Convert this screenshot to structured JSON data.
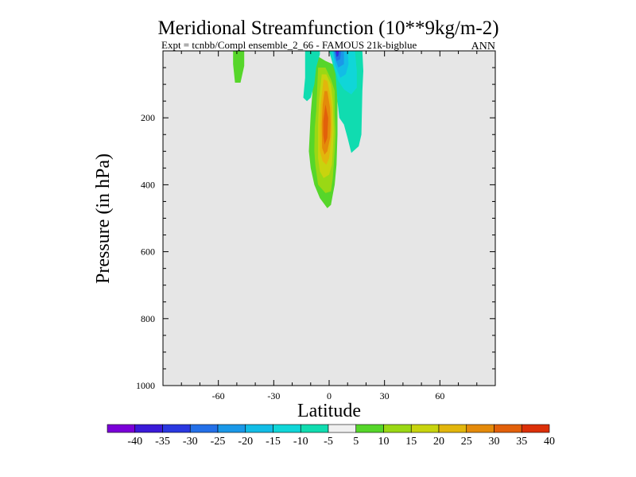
{
  "chart_data": {
    "type": "heatmap",
    "title": "Meridional Streamfunction (10**9kg/m-2)",
    "subtitle": "Expt = tcnbb/Compl ensemble_2_66 - FAMOUS 21k-bigblue",
    "season": "ANN",
    "xlabel": "Latitude",
    "ylabel": "Pressure (in hPa)",
    "xlim": [
      -90,
      90
    ],
    "ylim": [
      1000,
      0
    ],
    "x_ticks": [
      {
        "value": -60,
        "label": "-60"
      },
      {
        "value": -30,
        "label": "-30"
      },
      {
        "value": 0,
        "label": "0"
      },
      {
        "value": 30,
        "label": "30"
      },
      {
        "value": 60,
        "label": "60"
      }
    ],
    "y_ticks": [
      {
        "value": 200,
        "label": "200"
      },
      {
        "value": 400,
        "label": "400"
      },
      {
        "value": 600,
        "label": "600"
      },
      {
        "value": 800,
        "label": "800"
      },
      {
        "value": 1000,
        "label": "1000"
      }
    ],
    "colorbar": {
      "labels": [
        "-40",
        "-35",
        "-30",
        "-25",
        "-20",
        "-15",
        "-10",
        "-5",
        "5",
        "10",
        "15",
        "20",
        "25",
        "30",
        "35",
        "40"
      ],
      "colors": [
        "#7a00d8",
        "#3a1ad8",
        "#2a38e0",
        "#2470e8",
        "#1a98e8",
        "#12bde6",
        "#10d6d8",
        "#10dcb0",
        "#f0f0f0",
        "#56d62a",
        "#9ad814",
        "#c8d40e",
        "#e2b60c",
        "#e48a0a",
        "#e2600a",
        "#dc3008"
      ]
    },
    "background_color": "#e6e6e6",
    "regions": [
      {
        "name": "positive cell 5",
        "level": 5,
        "color": "#56d62a",
        "points": [
          [
            -8,
            10
          ],
          [
            -2,
            30
          ],
          [
            2,
            40
          ],
          [
            4,
            70
          ],
          [
            4.5,
            150
          ],
          [
            4.5,
            250
          ],
          [
            4,
            340
          ],
          [
            3,
            400
          ],
          [
            2,
            430
          ],
          [
            1,
            460
          ],
          [
            -1,
            470
          ],
          [
            -5,
            440
          ],
          [
            -8,
            400
          ],
          [
            -10,
            350
          ],
          [
            -11,
            300
          ],
          [
            -10,
            190
          ],
          [
            -9,
            120
          ],
          [
            -8,
            50
          ]
        ]
      },
      {
        "name": "positive cell 10",
        "level": 10,
        "color": "#9ad814",
        "points": [
          [
            -6,
            50
          ],
          [
            -2,
            50
          ],
          [
            1,
            85
          ],
          [
            3,
            120
          ],
          [
            3,
            190
          ],
          [
            3.5,
            245
          ],
          [
            3,
            300
          ],
          [
            2,
            380
          ],
          [
            1,
            420
          ],
          [
            -2,
            425
          ],
          [
            -6,
            400
          ],
          [
            -7.5,
            340
          ],
          [
            -8,
            300
          ],
          [
            -7.8,
            230
          ],
          [
            -7,
            180
          ],
          [
            -6.5,
            120
          ]
        ]
      },
      {
        "name": "positive cell 15",
        "level": 15,
        "color": "#c8d40e",
        "points": [
          [
            -4,
            70
          ],
          [
            -1.5,
            70
          ],
          [
            1,
            100
          ],
          [
            2,
            150
          ],
          [
            2.5,
            240
          ],
          [
            2,
            300
          ],
          [
            1.5,
            340
          ],
          [
            0,
            370
          ],
          [
            -3,
            380
          ],
          [
            -5,
            360
          ],
          [
            -6,
            320
          ],
          [
            -6,
            220
          ],
          [
            -5.5,
            150
          ]
        ]
      },
      {
        "name": "positive cell 20",
        "level": 20,
        "color": "#e2b60c",
        "points": [
          [
            -3,
            85
          ],
          [
            -1,
            90
          ],
          [
            0.5,
            130
          ],
          [
            1.5,
            170
          ],
          [
            1.5,
            240
          ],
          [
            1,
            270
          ],
          [
            0,
            320
          ],
          [
            -1.5,
            340
          ],
          [
            -3.5,
            330
          ],
          [
            -5,
            300
          ],
          [
            -5,
            220
          ],
          [
            -4.5,
            160
          ]
        ]
      },
      {
        "name": "positive cell 25",
        "level": 25,
        "color": "#e48a0a",
        "points": [
          [
            -2.5,
            120
          ],
          [
            -1,
            120
          ],
          [
            0.5,
            170
          ],
          [
            0.8,
            220
          ],
          [
            0.5,
            260
          ],
          [
            -1,
            300
          ],
          [
            -2.5,
            310
          ],
          [
            -3.8,
            290
          ],
          [
            -4,
            220
          ],
          [
            -3.5,
            160
          ]
        ]
      },
      {
        "name": "positive cell 30",
        "level": 30,
        "color": "#e2600a",
        "points": [
          [
            -2,
            160
          ],
          [
            -0.5,
            200
          ],
          [
            -1,
            260
          ],
          [
            -2.5,
            280
          ],
          [
            -3.2,
            250
          ],
          [
            -3.2,
            210
          ]
        ]
      },
      {
        "name": "southern negative -5",
        "level": -5,
        "color": "#10dcb0",
        "points": [
          [
            -13,
            0
          ],
          [
            -5,
            0
          ],
          [
            -5,
            10
          ],
          [
            -7,
            50
          ],
          [
            -8,
            100
          ],
          [
            -10,
            140
          ],
          [
            -12,
            150
          ],
          [
            -14,
            140
          ],
          [
            -13,
            80
          ]
        ]
      },
      {
        "name": "northern negative -5",
        "level": -5,
        "color": "#10dcb0",
        "points": [
          [
            0,
            0
          ],
          [
            18,
            0
          ],
          [
            18.5,
            60
          ],
          [
            18,
            120
          ],
          [
            17.5,
            250
          ],
          [
            16,
            285
          ],
          [
            12,
            305
          ],
          [
            10,
            260
          ],
          [
            8,
            220
          ],
          [
            5.5,
            200
          ],
          [
            4.5,
            150
          ],
          [
            3.5,
            70
          ],
          [
            1,
            20
          ]
        ]
      },
      {
        "name": "northern negative -10",
        "level": -10,
        "color": "#10d6d8",
        "points": [
          [
            1,
            0
          ],
          [
            14,
            0
          ],
          [
            15,
            60
          ],
          [
            15,
            110
          ],
          [
            12,
            130
          ],
          [
            8,
            115
          ],
          [
            5,
            90
          ],
          [
            2,
            30
          ]
        ]
      },
      {
        "name": "northern negative -15",
        "level": -15,
        "color": "#12bde6",
        "points": [
          [
            2,
            0
          ],
          [
            10,
            0
          ],
          [
            10.5,
            40
          ],
          [
            9,
            70
          ],
          [
            6,
            80
          ],
          [
            3,
            40
          ]
        ]
      },
      {
        "name": "northern negative -20",
        "level": -20,
        "color": "#1a98e8",
        "points": [
          [
            2.5,
            0
          ],
          [
            8,
            0
          ],
          [
            8,
            40
          ],
          [
            5,
            50
          ],
          [
            3,
            20
          ]
        ]
      },
      {
        "name": "northern negative -25",
        "level": -25,
        "color": "#2470e8",
        "points": [
          [
            3,
            0
          ],
          [
            6.5,
            0
          ],
          [
            6,
            25
          ],
          [
            4,
            30
          ]
        ]
      },
      {
        "name": "northern negative -30",
        "level": -30,
        "color": "#2a38e0",
        "points": [
          [
            3.5,
            0
          ],
          [
            5.5,
            0
          ],
          [
            5,
            15
          ],
          [
            4,
            18
          ]
        ]
      },
      {
        "name": "northern negative -35",
        "level": -35,
        "color": "#7a00d8",
        "points": [
          [
            4,
            0
          ],
          [
            5,
            0
          ],
          [
            4.5,
            8
          ]
        ]
      },
      {
        "name": "southern positive patch",
        "level": 5,
        "color": "#56d62a",
        "points": [
          [
            -52,
            0
          ],
          [
            -46,
            0
          ],
          [
            -46,
            45
          ],
          [
            -48,
            95
          ],
          [
            -51,
            95
          ],
          [
            -52,
            40
          ]
        ]
      }
    ]
  }
}
